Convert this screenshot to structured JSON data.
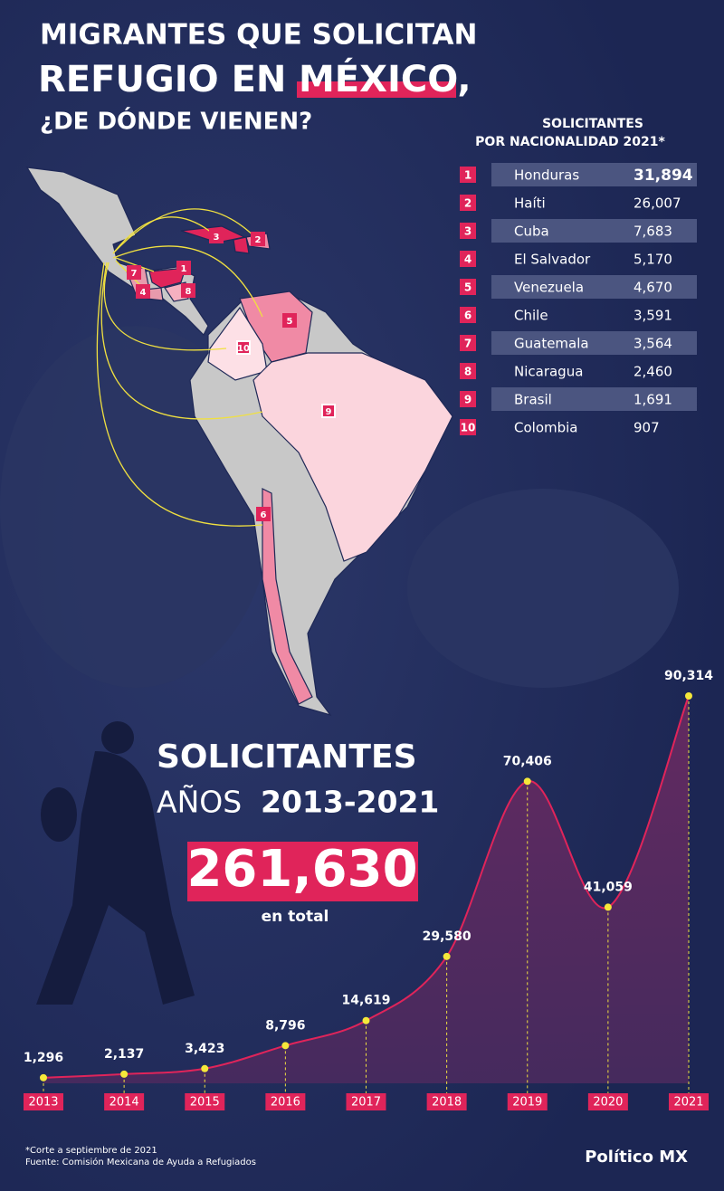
{
  "header": {
    "line1": "MIGRANTES QUE SOLICITAN",
    "line2": "REFUGIO EN",
    "highlight": "MÉXICO,",
    "line3": "¿DE DÓNDE VIENEN?"
  },
  "ranking": {
    "title_line1": "SOLICITANTES",
    "title_line2": "POR NACIONALIDAD 2021*",
    "rows": [
      {
        "rank": 1,
        "country": "Honduras",
        "value": "31,894"
      },
      {
        "rank": 2,
        "country": "Haíti",
        "value": "26,007"
      },
      {
        "rank": 3,
        "country": "Cuba",
        "value": "7,683"
      },
      {
        "rank": 4,
        "country": "El Salvador",
        "value": "5,170"
      },
      {
        "rank": 5,
        "country": "Venezuela",
        "value": "4,670"
      },
      {
        "rank": 6,
        "country": "Chile",
        "value": "3,591"
      },
      {
        "rank": 7,
        "country": "Guatemala",
        "value": "3,564"
      },
      {
        "rank": 8,
        "country": "Nicaragua",
        "value": "2,460"
      },
      {
        "rank": 9,
        "country": "Brasil",
        "value": "1,691"
      },
      {
        "rank": 10,
        "country": "Colombia",
        "value": "907"
      }
    ]
  },
  "chart_data": {
    "type": "area",
    "title_line1": "SOLICITANTES",
    "title_line2a": "AÑOS",
    "title_line2b": "2013-2021",
    "total": "261,630",
    "total_caption": "en total",
    "categories": [
      "2013",
      "2014",
      "2015",
      "2016",
      "2017",
      "2018",
      "2019",
      "2020",
      "2021"
    ],
    "values": [
      1296,
      2137,
      3423,
      8796,
      14619,
      29580,
      70406,
      41059,
      90314
    ],
    "value_labels": [
      "1,296",
      "2,137",
      "3,423",
      "8,796",
      "14,619",
      "29,580",
      "70,406",
      "41,059",
      "90,314"
    ],
    "color": "#e0245a"
  },
  "footer": {
    "note": "*Corte a septiembre de 2021",
    "source": "Fuente: Comisión Mexicana de Ayuda a Refugiados",
    "brand": "Político MX"
  }
}
